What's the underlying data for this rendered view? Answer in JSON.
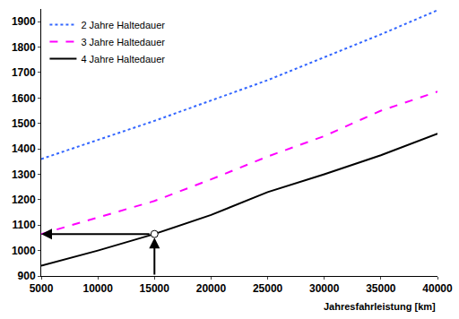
{
  "chart_data": {
    "type": "line",
    "x_label": "Jahresfahrleistung [km]",
    "x": [
      5000,
      10000,
      15000,
      20000,
      25000,
      30000,
      35000,
      40000
    ],
    "series": [
      {
        "name": "2 Jahre Haltedauer",
        "color": "#3366ff",
        "line_style": "dotted",
        "values": [
          1360,
          1435,
          1510,
          1590,
          1670,
          1760,
          1850,
          1945
        ]
      },
      {
        "name": "3 Jahre Haltedauer",
        "color": "#ff00ff",
        "line_style": "dashed",
        "values": [
          1065,
          1130,
          1195,
          1280,
          1370,
          1450,
          1550,
          1625
        ]
      },
      {
        "name": "4 Jahre Haltedauer",
        "color": "#000000",
        "line_style": "solid",
        "values": [
          940,
          1000,
          1065,
          1140,
          1230,
          1300,
          1375,
          1460
        ]
      }
    ],
    "marked_point": {
      "x": 15000,
      "y": 1065
    },
    "xlim": [
      5000,
      40000
    ],
    "xticks": [
      5000,
      10000,
      15000,
      20000,
      25000,
      30000,
      35000,
      40000
    ],
    "ylim": [
      900,
      1950
    ],
    "yticks": [
      900,
      1000,
      1100,
      1200,
      1300,
      1400,
      1500,
      1600,
      1700,
      1800,
      1900
    ],
    "grid": false,
    "legend": "top left"
  }
}
